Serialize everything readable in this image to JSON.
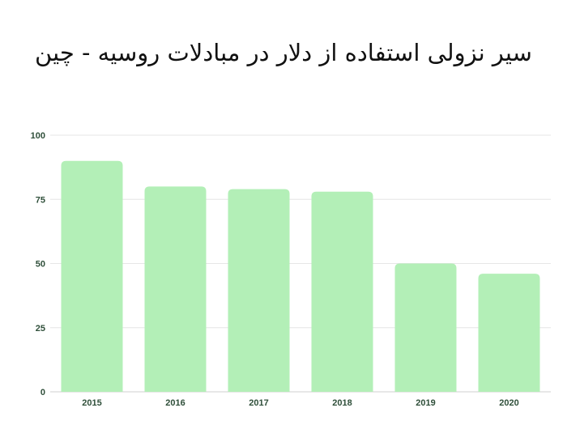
{
  "chart_data": {
    "type": "bar",
    "title": "سیر نزولی استفاده از دلار در مبادلات روسیه - چین",
    "xlabel": "",
    "ylabel": "",
    "categories": [
      "2015",
      "2016",
      "2017",
      "2018",
      "2019",
      "2020"
    ],
    "values": [
      90,
      80,
      79,
      78,
      50,
      46
    ],
    "ylim": [
      0,
      100
    ],
    "yticks": [
      0,
      25,
      50,
      75,
      100
    ],
    "grid": true,
    "legend": "none",
    "bar_color": "#b3efb7"
  }
}
